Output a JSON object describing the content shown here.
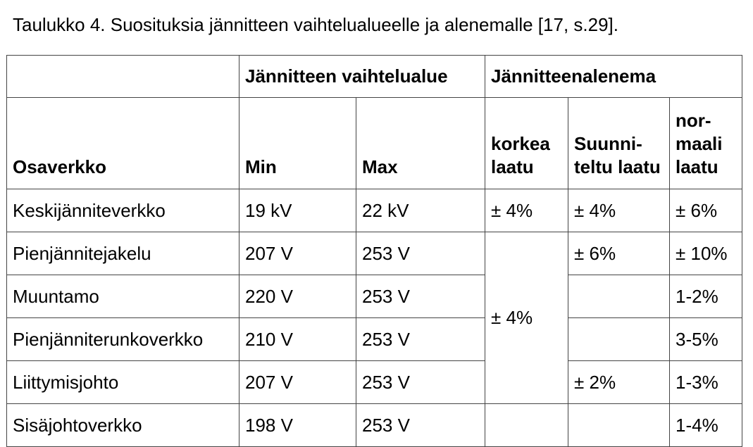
{
  "caption": "Taulukko 4. Suosituksia jännitteen vaihtelualueelle ja alenemalle [17, s.29].",
  "header": {
    "group_range": "Jännitteen vaihtelualue",
    "group_drop": "Jännitteenalenema",
    "subnet": "Osaverkko",
    "min": "Min",
    "max": "Max",
    "high": "korkea laatu",
    "planned": "Suunni-teltu laatu",
    "normal": "nor-maali laatu"
  },
  "rows": [
    {
      "name": "Keskijänniteverkko",
      "min": "19 kV",
      "max": "22 kV",
      "high": "± 4%",
      "planned": "± 4%",
      "normal": "± 6%"
    },
    {
      "name": "Pienjännitejakelu",
      "min": "207 V",
      "max": "253 V",
      "high": "± 4%",
      "planned": "± 6%",
      "normal": "± 10%"
    },
    {
      "name": "Muuntamo",
      "min": "220 V",
      "max": "253 V",
      "normal": "1-2%"
    },
    {
      "name": "Pienjänniterunkoverkko",
      "min": "210 V",
      "max": "253 V",
      "normal": "3-5%"
    },
    {
      "name": "Liittymisjohto",
      "min": "207 V",
      "max": "253 V",
      "planned": "± 2%",
      "normal": "1-3%"
    },
    {
      "name": "Sisäjohtoverkko",
      "min": "198 V",
      "max": "253 V",
      "normal": "1-4%"
    }
  ]
}
